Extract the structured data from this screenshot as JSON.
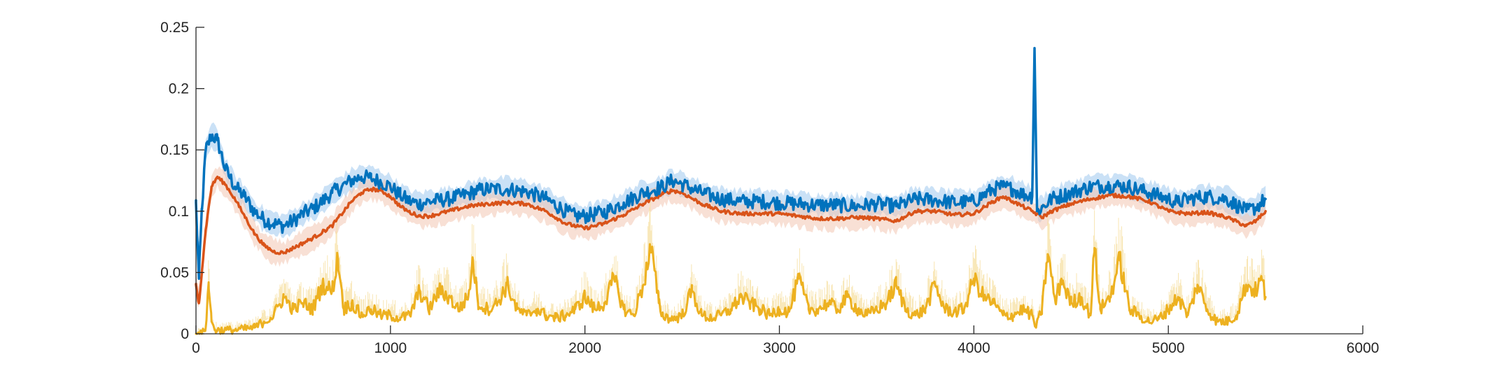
{
  "chart_data": {
    "type": "line",
    "title": "",
    "xlabel": "",
    "ylabel": "",
    "xlim": [
      0,
      6000
    ],
    "ylim": [
      0,
      0.25
    ],
    "x_ticks": [
      "0",
      "1000",
      "2000",
      "3000",
      "4000",
      "5000",
      "6000"
    ],
    "y_ticks": [
      "0",
      "0.05",
      "0.1",
      "0.15",
      "0.2",
      "0.25"
    ],
    "grid": false,
    "legend": "none",
    "series": [
      {
        "color": "#0072BD",
        "band_color": "#9EC9EE",
        "points": [
          [
            0,
            0.107
          ],
          [
            15,
            0.045
          ],
          [
            30,
            0.1
          ],
          [
            50,
            0.15
          ],
          [
            80,
            0.162
          ],
          [
            110,
            0.158
          ],
          [
            150,
            0.135
          ],
          [
            200,
            0.12
          ],
          [
            250,
            0.112
          ],
          [
            300,
            0.1
          ],
          [
            350,
            0.093
          ],
          [
            400,
            0.09
          ],
          [
            450,
            0.088
          ],
          [
            500,
            0.092
          ],
          [
            550,
            0.098
          ],
          [
            600,
            0.102
          ],
          [
            650,
            0.108
          ],
          [
            700,
            0.115
          ],
          [
            750,
            0.12
          ],
          [
            800,
            0.125
          ],
          [
            850,
            0.128
          ],
          [
            900,
            0.127
          ],
          [
            950,
            0.124
          ],
          [
            1000,
            0.12
          ],
          [
            1050,
            0.113
          ],
          [
            1100,
            0.108
          ],
          [
            1150,
            0.106
          ],
          [
            1200,
            0.108
          ],
          [
            1300,
            0.11
          ],
          [
            1400,
            0.114
          ],
          [
            1450,
            0.117
          ],
          [
            1500,
            0.118
          ],
          [
            1600,
            0.118
          ],
          [
            1700,
            0.116
          ],
          [
            1800,
            0.11
          ],
          [
            1900,
            0.1
          ],
          [
            1950,
            0.096
          ],
          [
            2000,
            0.096
          ],
          [
            2100,
            0.099
          ],
          [
            2200,
            0.107
          ],
          [
            2300,
            0.115
          ],
          [
            2400,
            0.12
          ],
          [
            2450,
            0.125
          ],
          [
            2500,
            0.122
          ],
          [
            2600,
            0.115
          ],
          [
            2700,
            0.11
          ],
          [
            2800,
            0.108
          ],
          [
            2900,
            0.108
          ],
          [
            3000,
            0.107
          ],
          [
            3100,
            0.106
          ],
          [
            3200,
            0.105
          ],
          [
            3300,
            0.105
          ],
          [
            3400,
            0.104
          ],
          [
            3500,
            0.106
          ],
          [
            3600,
            0.104
          ],
          [
            3700,
            0.11
          ],
          [
            3800,
            0.109
          ],
          [
            3900,
            0.107
          ],
          [
            4000,
            0.108
          ],
          [
            4100,
            0.118
          ],
          [
            4150,
            0.12
          ],
          [
            4200,
            0.118
          ],
          [
            4250,
            0.114
          ],
          [
            4300,
            0.112
          ],
          [
            4312,
            0.233
          ],
          [
            4325,
            0.1
          ],
          [
            4350,
            0.103
          ],
          [
            4400,
            0.11
          ],
          [
            4500,
            0.115
          ],
          [
            4600,
            0.12
          ],
          [
            4700,
            0.121
          ],
          [
            4800,
            0.12
          ],
          [
            4900,
            0.115
          ],
          [
            5000,
            0.11
          ],
          [
            5050,
            0.107
          ],
          [
            5100,
            0.11
          ],
          [
            5200,
            0.112
          ],
          [
            5300,
            0.11
          ],
          [
            5400,
            0.1
          ],
          [
            5450,
            0.103
          ],
          [
            5500,
            0.11
          ]
        ]
      },
      {
        "color": "#D95319",
        "band_color": "#F3C7B3",
        "points": [
          [
            0,
            0.04
          ],
          [
            15,
            0.025
          ],
          [
            30,
            0.05
          ],
          [
            50,
            0.085
          ],
          [
            80,
            0.12
          ],
          [
            110,
            0.128
          ],
          [
            150,
            0.122
          ],
          [
            200,
            0.11
          ],
          [
            250,
            0.096
          ],
          [
            300,
            0.082
          ],
          [
            350,
            0.072
          ],
          [
            400,
            0.067
          ],
          [
            450,
            0.066
          ],
          [
            500,
            0.07
          ],
          [
            600,
            0.078
          ],
          [
            700,
            0.088
          ],
          [
            800,
            0.108
          ],
          [
            850,
            0.115
          ],
          [
            900,
            0.118
          ],
          [
            950,
            0.117
          ],
          [
            1000,
            0.112
          ],
          [
            1050,
            0.104
          ],
          [
            1100,
            0.099
          ],
          [
            1150,
            0.096
          ],
          [
            1200,
            0.096
          ],
          [
            1300,
            0.1
          ],
          [
            1400,
            0.104
          ],
          [
            1500,
            0.106
          ],
          [
            1600,
            0.107
          ],
          [
            1700,
            0.106
          ],
          [
            1800,
            0.1
          ],
          [
            1900,
            0.09
          ],
          [
            2000,
            0.086
          ],
          [
            2100,
            0.09
          ],
          [
            2200,
            0.097
          ],
          [
            2300,
            0.106
          ],
          [
            2400,
            0.114
          ],
          [
            2450,
            0.117
          ],
          [
            2500,
            0.115
          ],
          [
            2600,
            0.106
          ],
          [
            2700,
            0.1
          ],
          [
            2800,
            0.098
          ],
          [
            2900,
            0.098
          ],
          [
            3000,
            0.098
          ],
          [
            3100,
            0.096
          ],
          [
            3200,
            0.094
          ],
          [
            3300,
            0.094
          ],
          [
            3400,
            0.095
          ],
          [
            3500,
            0.094
          ],
          [
            3600,
            0.092
          ],
          [
            3700,
            0.1
          ],
          [
            3800,
            0.1
          ],
          [
            3900,
            0.097
          ],
          [
            4000,
            0.098
          ],
          [
            4100,
            0.108
          ],
          [
            4150,
            0.112
          ],
          [
            4200,
            0.108
          ],
          [
            4300,
            0.1
          ],
          [
            4350,
            0.095
          ],
          [
            4400,
            0.1
          ],
          [
            4500,
            0.106
          ],
          [
            4600,
            0.11
          ],
          [
            4700,
            0.113
          ],
          [
            4800,
            0.112
          ],
          [
            4900,
            0.108
          ],
          [
            5000,
            0.1
          ],
          [
            5100,
            0.098
          ],
          [
            5200,
            0.099
          ],
          [
            5300,
            0.095
          ],
          [
            5400,
            0.088
          ],
          [
            5450,
            0.092
          ],
          [
            5500,
            0.1
          ]
        ]
      },
      {
        "color": "#EDB120",
        "band_color": "#F6DE9F",
        "points": [
          [
            0,
            0.0
          ],
          [
            30,
            0.0
          ],
          [
            50,
            0.005
          ],
          [
            65,
            0.042
          ],
          [
            80,
            0.01
          ],
          [
            100,
            0.003
          ],
          [
            200,
            0.003
          ],
          [
            300,
            0.005
          ],
          [
            350,
            0.01
          ],
          [
            400,
            0.015
          ],
          [
            450,
            0.03
          ],
          [
            500,
            0.02
          ],
          [
            550,
            0.025
          ],
          [
            600,
            0.02
          ],
          [
            650,
            0.04
          ],
          [
            700,
            0.035
          ],
          [
            730,
            0.062
          ],
          [
            760,
            0.02
          ],
          [
            800,
            0.025
          ],
          [
            850,
            0.015
          ],
          [
            900,
            0.02
          ],
          [
            950,
            0.015
          ],
          [
            1000,
            0.015
          ],
          [
            1050,
            0.013
          ],
          [
            1100,
            0.015
          ],
          [
            1150,
            0.035
          ],
          [
            1200,
            0.02
          ],
          [
            1250,
            0.035
          ],
          [
            1300,
            0.03
          ],
          [
            1350,
            0.02
          ],
          [
            1400,
            0.03
          ],
          [
            1425,
            0.06
          ],
          [
            1450,
            0.025
          ],
          [
            1500,
            0.02
          ],
          [
            1550,
            0.025
          ],
          [
            1600,
            0.04
          ],
          [
            1650,
            0.02
          ],
          [
            1700,
            0.015
          ],
          [
            1750,
            0.02
          ],
          [
            1800,
            0.015
          ],
          [
            1850,
            0.013
          ],
          [
            1900,
            0.015
          ],
          [
            1950,
            0.02
          ],
          [
            2000,
            0.03
          ],
          [
            2050,
            0.02
          ],
          [
            2100,
            0.025
          ],
          [
            2150,
            0.045
          ],
          [
            2200,
            0.02
          ],
          [
            2250,
            0.015
          ],
          [
            2300,
            0.04
          ],
          [
            2340,
            0.07
          ],
          [
            2380,
            0.025
          ],
          [
            2400,
            0.015
          ],
          [
            2450,
            0.012
          ],
          [
            2500,
            0.015
          ],
          [
            2550,
            0.035
          ],
          [
            2600,
            0.015
          ],
          [
            2650,
            0.013
          ],
          [
            2700,
            0.015
          ],
          [
            2750,
            0.02
          ],
          [
            2800,
            0.03
          ],
          [
            2850,
            0.025
          ],
          [
            2900,
            0.02
          ],
          [
            2950,
            0.015
          ],
          [
            3000,
            0.02
          ],
          [
            3050,
            0.018
          ],
          [
            3100,
            0.045
          ],
          [
            3150,
            0.02
          ],
          [
            3200,
            0.02
          ],
          [
            3250,
            0.025
          ],
          [
            3300,
            0.02
          ],
          [
            3350,
            0.03
          ],
          [
            3400,
            0.02
          ],
          [
            3450,
            0.015
          ],
          [
            3500,
            0.02
          ],
          [
            3550,
            0.025
          ],
          [
            3600,
            0.04
          ],
          [
            3650,
            0.02
          ],
          [
            3700,
            0.015
          ],
          [
            3750,
            0.02
          ],
          [
            3800,
            0.04
          ],
          [
            3850,
            0.02
          ],
          [
            3900,
            0.018
          ],
          [
            3950,
            0.02
          ],
          [
            4000,
            0.045
          ],
          [
            4050,
            0.03
          ],
          [
            4100,
            0.025
          ],
          [
            4150,
            0.015
          ],
          [
            4200,
            0.015
          ],
          [
            4250,
            0.02
          ],
          [
            4300,
            0.015
          ],
          [
            4320,
            0.005
          ],
          [
            4350,
            0.02
          ],
          [
            4380,
            0.065
          ],
          [
            4420,
            0.025
          ],
          [
            4450,
            0.045
          ],
          [
            4500,
            0.025
          ],
          [
            4550,
            0.03
          ],
          [
            4600,
            0.015
          ],
          [
            4620,
            0.07
          ],
          [
            4650,
            0.02
          ],
          [
            4700,
            0.03
          ],
          [
            4750,
            0.06
          ],
          [
            4800,
            0.02
          ],
          [
            4850,
            0.015
          ],
          [
            4900,
            0.01
          ],
          [
            4950,
            0.012
          ],
          [
            5000,
            0.02
          ],
          [
            5050,
            0.03
          ],
          [
            5100,
            0.015
          ],
          [
            5150,
            0.04
          ],
          [
            5200,
            0.02
          ],
          [
            5250,
            0.01
          ],
          [
            5300,
            0.01
          ],
          [
            5350,
            0.015
          ],
          [
            5400,
            0.04
          ],
          [
            5450,
            0.035
          ],
          [
            5480,
            0.045
          ],
          [
            5500,
            0.03
          ]
        ]
      }
    ]
  }
}
